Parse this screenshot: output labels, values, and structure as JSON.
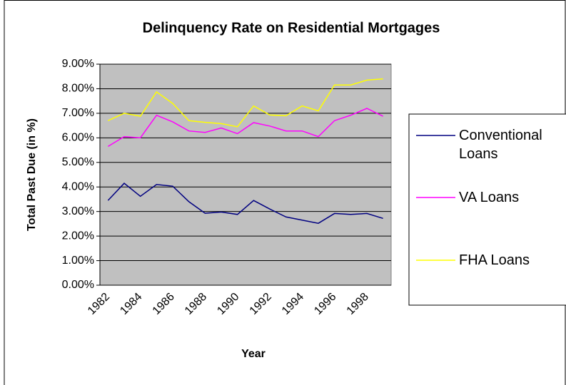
{
  "chart_data": {
    "type": "line",
    "title": "Delinquency Rate on Residential Mortgages",
    "x_label": "Year",
    "y_label": "Total Past Due (in %)",
    "categories": [
      "1982",
      null,
      "1984",
      null,
      "1986",
      null,
      "1988",
      null,
      "1990",
      null,
      "1992",
      null,
      "1994",
      null,
      "1996",
      null,
      "1998",
      null
    ],
    "series": [
      {
        "name": "Conventional Loans",
        "color": "#000080",
        "values": [
          3.45,
          4.15,
          3.62,
          4.1,
          4.03,
          3.4,
          2.93,
          2.98,
          2.88,
          3.45,
          3.1,
          2.78,
          2.65,
          2.52,
          2.92,
          2.88,
          2.92,
          2.72
        ]
      },
      {
        "name": "VA Loans",
        "color": "#ff00ff",
        "values": [
          5.65,
          6.05,
          6.0,
          6.92,
          6.65,
          6.28,
          6.22,
          6.4,
          6.17,
          6.62,
          6.48,
          6.28,
          6.28,
          6.05,
          6.7,
          6.92,
          7.2,
          6.88
        ]
      },
      {
        "name": "FHA Loans",
        "color": "#ffff00",
        "values": [
          6.7,
          7.0,
          6.88,
          7.87,
          7.4,
          6.7,
          6.63,
          6.58,
          6.45,
          7.3,
          6.93,
          6.9,
          7.3,
          7.1,
          8.15,
          8.15,
          8.35,
          8.4
        ]
      }
    ],
    "ylim": [
      0,
      9
    ],
    "yticks": [
      {
        "value": 0,
        "label": "0.00%"
      },
      {
        "value": 1,
        "label": "1.00%"
      },
      {
        "value": 2,
        "label": "2.00%"
      },
      {
        "value": 3,
        "label": "3.00%"
      },
      {
        "value": 4,
        "label": "4.00%"
      },
      {
        "value": 5,
        "label": "5.00%"
      },
      {
        "value": 6,
        "label": "6.00%"
      },
      {
        "value": 7,
        "label": "7.00%"
      },
      {
        "value": 8,
        "label": "8.00%"
      },
      {
        "value": 9,
        "label": "9.00%"
      }
    ],
    "grid": true,
    "plot_background": "#c0c0c0",
    "legend": "right"
  }
}
